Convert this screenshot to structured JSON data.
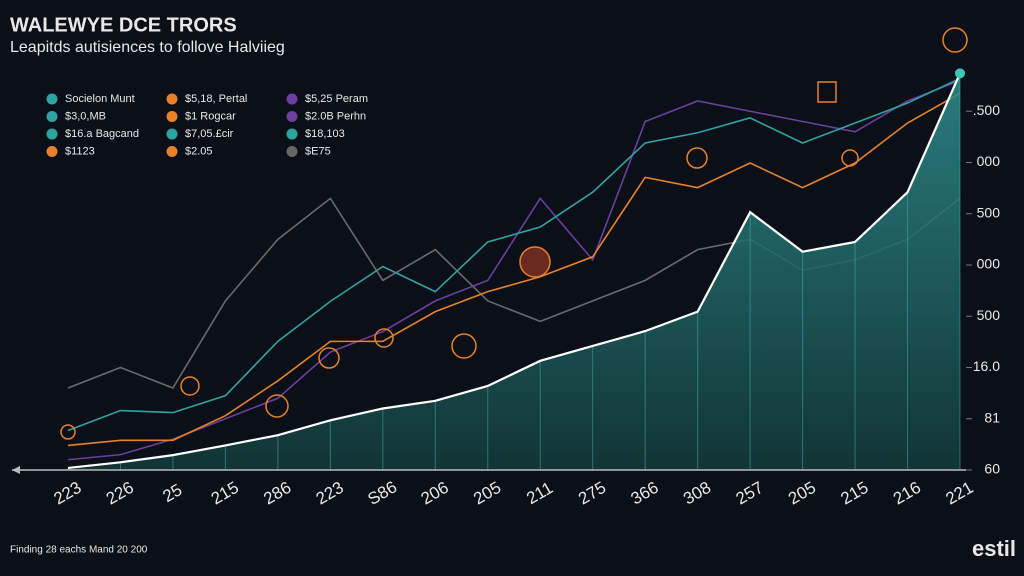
{
  "chart_data": {
    "type": "line",
    "title": "WALEWYE DCE TRORS",
    "subtitle": "Leapitds autisiences to follove Halviieg",
    "footer": "Finding 28 eachs Mand 20 200",
    "brand": "estil",
    "categories": [
      "223",
      "226",
      "25",
      "215",
      "286",
      "223",
      "S86",
      "206",
      "205",
      "211",
      "275",
      "366",
      "308",
      "257",
      "205",
      "215",
      "216",
      "221"
    ],
    "ylim": [
      0,
      8
    ],
    "yticks": [
      {
        "value": 0,
        "label": "60"
      },
      {
        "value": 1,
        "label": "81"
      },
      {
        "value": 2,
        "label": "16.0"
      },
      {
        "value": 3,
        "label": "500"
      },
      {
        "value": 4,
        "label": "000"
      },
      {
        "value": 5,
        "label": "500"
      },
      {
        "value": 6,
        "label": "000"
      },
      {
        "value": 7,
        "label": ".500"
      }
    ],
    "legend": [
      {
        "label": "Socielon Munt",
        "color": "#2fa3a3"
      },
      {
        "label": "$5,18, Pertal",
        "color": "#e8822a"
      },
      {
        "label": "$5,25 Peram",
        "color": "#6a3fa0"
      },
      {
        "label": "$3,0,MB",
        "color": "#2fa3a3"
      },
      {
        "label": "$1 Rogcar",
        "color": "#e8822a"
      },
      {
        "label": "$2.0B Perhn",
        "color": "#6a3fa0"
      },
      {
        "label": "$16.a Bagcand",
        "color": "#2fa3a3"
      },
      {
        "label": "$7,05.£cir",
        "color": "#2fa3a3"
      },
      {
        "label": "$18,103",
        "color": "#2fa3a3"
      },
      {
        "label": "$1123",
        "color": "#e8822a"
      },
      {
        "label": "$2.05",
        "color": "#e8822a"
      },
      {
        "label": "$E75",
        "color": "#666666"
      }
    ],
    "series": [
      {
        "color": "#6a6a6a",
        "values": [
          1.6,
          2.0,
          1.6,
          3.3,
          4.5,
          5.3,
          3.7,
          4.3,
          3.3,
          2.9,
          3.3,
          3.7,
          4.3,
          4.5,
          3.9,
          4.1,
          4.5,
          5.3
        ]
      },
      {
        "color": "#6a3fa0",
        "values": [
          0.2,
          0.3,
          0.6,
          1.0,
          1.4,
          2.3,
          2.7,
          3.3,
          3.7,
          5.3,
          4.1,
          6.8,
          7.2,
          7.0,
          6.8,
          6.6,
          7.2,
          7.6
        ]
      },
      {
        "color": "#e8822a",
        "values": [
          0.48,
          0.58,
          0.58,
          1.06,
          1.74,
          2.51,
          2.51,
          3.09,
          3.48,
          3.77,
          4.16,
          5.71,
          5.51,
          5.99,
          5.51,
          5.99,
          6.77,
          7.35
        ]
      },
      {
        "color": "#2fa3a3",
        "values": [
          0.77,
          1.16,
          1.12,
          1.45,
          2.51,
          3.29,
          3.97,
          3.48,
          4.45,
          4.74,
          5.42,
          6.38,
          6.58,
          6.87,
          6.38,
          6.77,
          7.16,
          7.64
        ]
      },
      {
        "color": "#ffffff",
        "area": true,
        "values": [
          0.04,
          0.15,
          0.29,
          0.48,
          0.68,
          0.97,
          1.2,
          1.35,
          1.64,
          2.13,
          2.42,
          2.71,
          3.09,
          5.03,
          4.26,
          4.45,
          5.42,
          7.74
        ]
      }
    ]
  }
}
